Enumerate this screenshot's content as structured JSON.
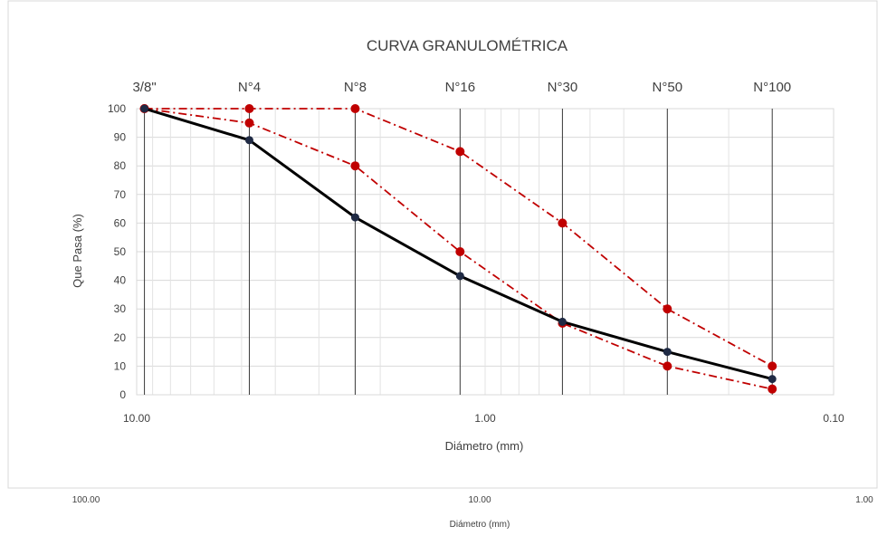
{
  "chart_data": {
    "type": "line",
    "title": "CURVA GRANULOMÉTRICA",
    "xlabel": "Diámetro (mm)",
    "ylabel": "Que Pasa (%)",
    "x_scale": "log",
    "x_reversed": true,
    "xlim": [
      10.0,
      0.1
    ],
    "ylim": [
      0,
      100
    ],
    "y_ticks": [
      0,
      10,
      20,
      30,
      40,
      50,
      60,
      70,
      80,
      90,
      100
    ],
    "x_tick_labels": [
      "10.00",
      "1.00",
      "0.10"
    ],
    "sieves": [
      {
        "name": "3/8\"",
        "d": 9.5
      },
      {
        "name": "N°4",
        "d": 4.75
      },
      {
        "name": "N°8",
        "d": 2.36
      },
      {
        "name": "N°16",
        "d": 1.18
      },
      {
        "name": "N°30",
        "d": 0.6
      },
      {
        "name": "N°50",
        "d": 0.3
      },
      {
        "name": "N°100",
        "d": 0.15
      }
    ],
    "series": [
      {
        "color": "#000000",
        "dash": "solid",
        "marker": "#1f2a44",
        "points": [
          [
            9.5,
            100
          ],
          [
            4.75,
            89
          ],
          [
            2.36,
            62
          ],
          [
            1.18,
            41.5
          ],
          [
            0.6,
            25.5
          ],
          [
            0.3,
            15
          ],
          [
            0.15,
            5.5
          ]
        ]
      },
      {
        "color": "#c00000",
        "dash": "dashdot",
        "marker": "#c00000",
        "points": [
          [
            9.5,
            100
          ],
          [
            4.75,
            100
          ],
          [
            2.36,
            100
          ],
          [
            1.18,
            85
          ],
          [
            0.6,
            60
          ],
          [
            0.3,
            30
          ],
          [
            0.15,
            10
          ]
        ]
      },
      {
        "color": "#c00000",
        "dash": "dashdot",
        "marker": "#c00000",
        "points": [
          [
            9.5,
            100
          ],
          [
            4.75,
            95
          ],
          [
            2.36,
            80
          ],
          [
            1.18,
            50
          ],
          [
            0.6,
            25
          ],
          [
            0.3,
            10
          ],
          [
            0.15,
            2
          ]
        ]
      }
    ],
    "grid": true,
    "legend": "none"
  },
  "background_chart": {
    "x_tick_labels": [
      "100.00",
      "10.00",
      "1.00"
    ],
    "xlabel": "Diámetro (mm)"
  }
}
